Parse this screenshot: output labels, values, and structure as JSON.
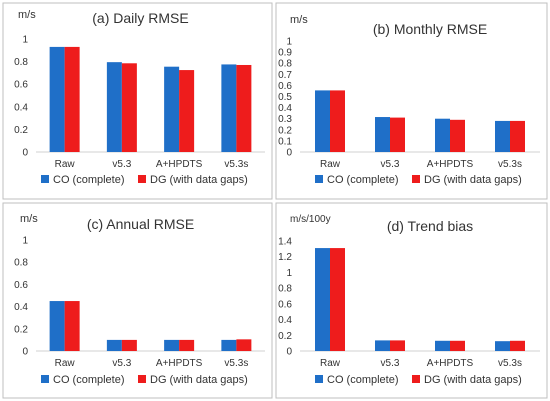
{
  "colors": {
    "co": "#1f6fc8",
    "dg": "#ee1c1c",
    "axis": "#d0d0d0",
    "frame": "#bfbfbf"
  },
  "chart_data": [
    {
      "type": "bar",
      "title": "(a) Daily RMSE",
      "unit": "m/s",
      "categories": [
        "Raw",
        "v5.3",
        "A+HPDTS",
        "v5.3s"
      ],
      "series": [
        {
          "name": "CO (complete)",
          "values": [
            0.93,
            0.795,
            0.755,
            0.775
          ]
        },
        {
          "name": "DG (with data gaps)",
          "values": [
            0.93,
            0.785,
            0.725,
            0.77
          ]
        }
      ],
      "ylim": [
        0,
        1
      ],
      "yticks": [
        "0",
        "0.2",
        "0.4",
        "0.6",
        "0.8",
        "1"
      ],
      "legend": "bottom"
    },
    {
      "type": "bar",
      "title": "(b) Monthly RMSE",
      "unit": "m/s",
      "categories": [
        "Raw",
        "v5.3",
        "A+HPDTS",
        "v5.3s"
      ],
      "series": [
        {
          "name": "CO (complete)",
          "values": [
            0.555,
            0.315,
            0.3,
            0.28
          ]
        },
        {
          "name": "DG (with data gaps)",
          "values": [
            0.555,
            0.31,
            0.29,
            0.28
          ]
        }
      ],
      "ylim": [
        0,
        1
      ],
      "yticks": [
        "0",
        "0.1",
        "0.2",
        "0.3",
        "0.4",
        "0.5",
        "0.6",
        "0.7",
        "0.8",
        "0.9",
        "1"
      ],
      "legend": "bottom"
    },
    {
      "type": "bar",
      "title": "(c) Annual RMSE",
      "unit": "m/s",
      "categories": [
        "Raw",
        "v5.3",
        "A+HPDTS",
        "v5.3s"
      ],
      "series": [
        {
          "name": "CO (complete)",
          "values": [
            0.45,
            0.1,
            0.1,
            0.1
          ]
        },
        {
          "name": "DG (with data gaps)",
          "values": [
            0.45,
            0.1,
            0.1,
            0.105
          ]
        }
      ],
      "ylim": [
        0,
        1
      ],
      "yticks": [
        "0",
        "0.2",
        "0.4",
        "0.6",
        "0.8",
        "1"
      ],
      "legend": "bottom"
    },
    {
      "type": "bar",
      "title": "(d) Trend bias",
      "unit": "m/s/100y",
      "categories": [
        "Raw",
        "v5.3",
        "A+HPDTS",
        "v5.3s"
      ],
      "series": [
        {
          "name": "CO (complete)",
          "values": [
            1.31,
            0.135,
            0.13,
            0.125
          ]
        },
        {
          "name": "DG (with data gaps)",
          "values": [
            1.31,
            0.135,
            0.13,
            0.13
          ]
        }
      ],
      "ylim": [
        0,
        1.4
      ],
      "yticks": [
        "0",
        "0.2",
        "0.4",
        "0.6",
        "0.8",
        "1",
        "1.2",
        "1.4"
      ],
      "legend": "bottom"
    }
  ]
}
